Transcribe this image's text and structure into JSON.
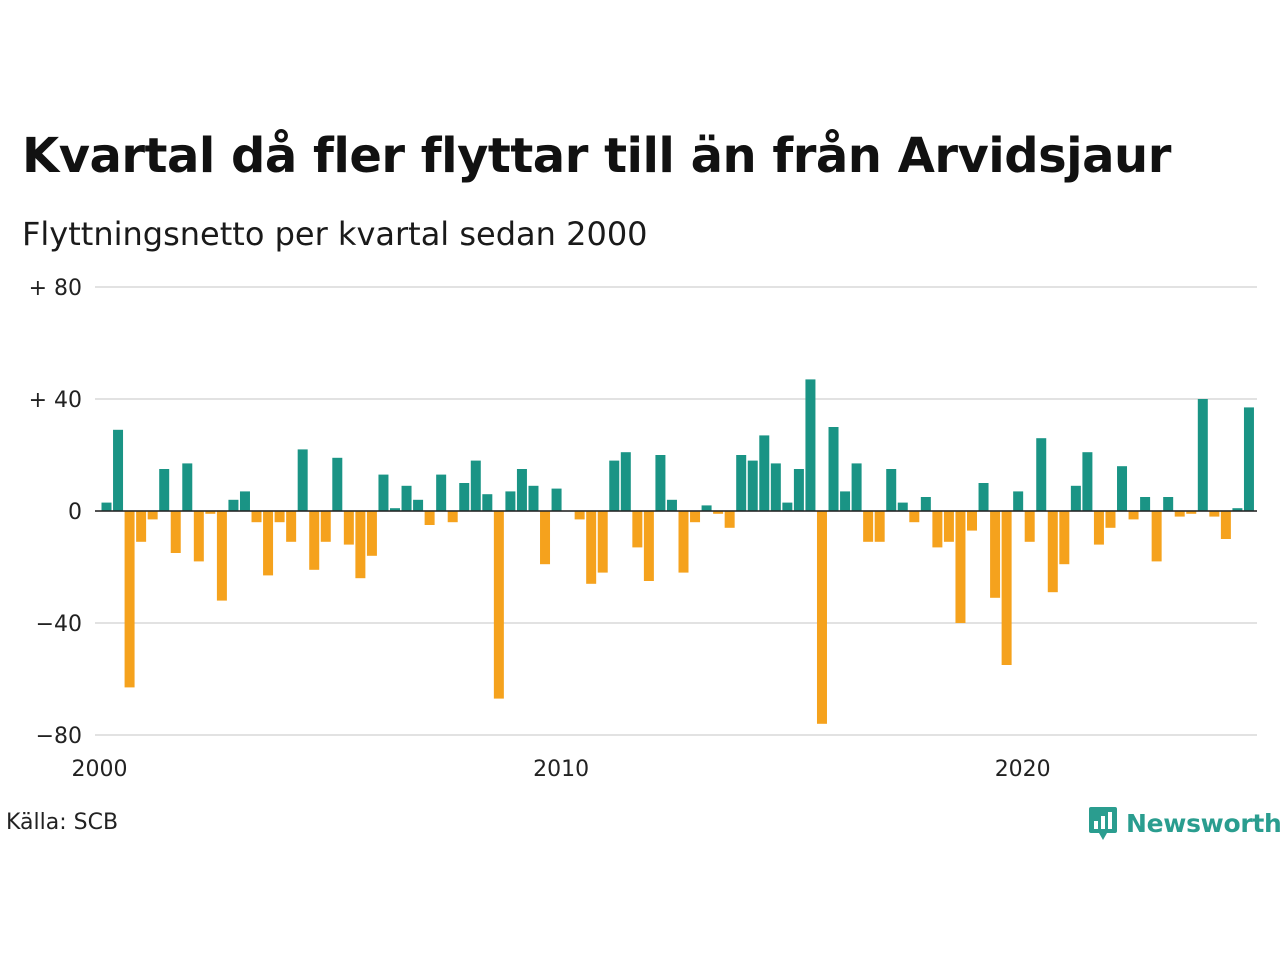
{
  "title": "Kvartal då fler flyttar till än från Arvidsjaur",
  "subtitle": "Flyttningsnetto per kvartal sedan 2000",
  "source": "Källa: SCB",
  "brand": "Newsworthy",
  "brand_icon": "chart-speech-bubble-icon",
  "colors": {
    "positive": "#1a9485",
    "negative": "#f5a21d",
    "grid": "#e2e2e2",
    "brand": "#2a9d8f"
  },
  "chart_data": {
    "type": "bar",
    "x_start": "2000 Q1",
    "x_end": "2025 Q1",
    "x_ticks": [
      {
        "value": 2000,
        "label": "2000"
      },
      {
        "value": 2010,
        "label": "2010"
      },
      {
        "value": 2020,
        "label": "2020"
      }
    ],
    "y_ticks": [
      {
        "value": 80,
        "label": "+ 80"
      },
      {
        "value": 40,
        "label": "+ 40"
      },
      {
        "value": 0,
        "label": "0"
      },
      {
        "value": -40,
        "label": "−40"
      },
      {
        "value": -80,
        "label": "−80"
      }
    ],
    "ylim": [
      -80,
      80
    ],
    "grid": true,
    "values": [
      3,
      29,
      -63,
      -11,
      -3,
      15,
      -15,
      17,
      -18,
      -1,
      -32,
      4,
      7,
      -4,
      -23,
      -4,
      -11,
      22,
      -21,
      -11,
      19,
      -12,
      -24,
      -16,
      13,
      1,
      9,
      4,
      -5,
      13,
      -4,
      10,
      18,
      6,
      -67,
      7,
      15,
      9,
      -19,
      8,
      0,
      -3,
      -26,
      -22,
      18,
      21,
      -13,
      -25,
      20,
      4,
      -22,
      -4,
      2,
      -1,
      -6,
      20,
      18,
      27,
      17,
      3,
      15,
      47,
      -76,
      30,
      7,
      17,
      -11,
      -11,
      15,
      3,
      -4,
      5,
      -13,
      -11,
      -40,
      -7,
      10,
      -31,
      -55,
      7,
      -11,
      26,
      -29,
      -19,
      9,
      21,
      -12,
      -6,
      16,
      -3,
      5,
      -18,
      5,
      -2,
      -1,
      40,
      -2,
      -10,
      1,
      37
    ]
  }
}
